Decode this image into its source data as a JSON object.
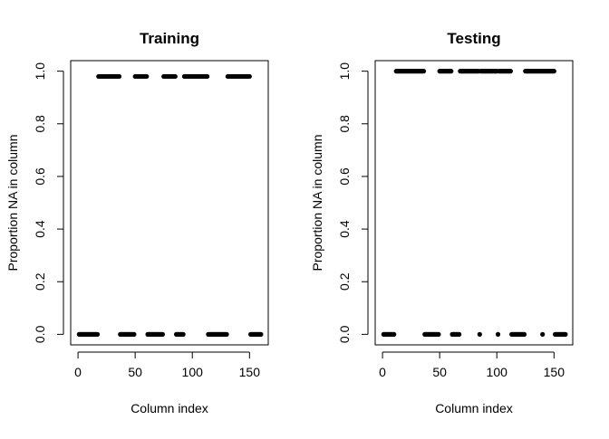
{
  "chart_data": [
    {
      "type": "scatter",
      "title": "Training",
      "xlabel": "Column index",
      "ylabel": "Proportion NA in column",
      "xlim": [
        -6.4,
        166.4
      ],
      "ylim": [
        -0.04,
        1.04
      ],
      "xticks": [
        0,
        50,
        100,
        150
      ],
      "yticks": [
        0.0,
        0.2,
        0.4,
        0.6,
        0.8,
        1.0
      ],
      "yticklabels": [
        "0.0",
        "0.2",
        "0.4",
        "0.6",
        "0.8",
        "1.0"
      ],
      "grid": false,
      "marker_color": "#000000",
      "series": [
        {
          "y": 0.98,
          "x_ranges": [
            [
              18,
              36
            ],
            [
              50,
              60
            ],
            [
              75,
              85
            ],
            [
              93,
              113
            ],
            [
              131,
              150
            ]
          ]
        },
        {
          "y": 0.0,
          "x_ranges": [
            [
              1,
              17
            ],
            [
              37,
              49
            ],
            [
              61,
              74
            ],
            [
              86,
              92
            ],
            [
              114,
              130
            ],
            [
              151,
              160
            ]
          ]
        }
      ]
    },
    {
      "type": "scatter",
      "title": "Testing",
      "xlabel": "Column index",
      "ylabel": "Proportion NA in column",
      "xlim": [
        -6.4,
        166.4
      ],
      "ylim": [
        -0.04,
        1.04
      ],
      "xticks": [
        0,
        50,
        100,
        150
      ],
      "yticks": [
        0.0,
        0.2,
        0.4,
        0.6,
        0.8,
        1.0
      ],
      "yticklabels": [
        "0.0",
        "0.2",
        "0.4",
        "0.6",
        "0.8",
        "1.0"
      ],
      "grid": false,
      "marker_color": "#000000",
      "series": [
        {
          "y": 1.0,
          "x_ranges": [
            [
              12,
              36
            ],
            [
              50,
              60
            ],
            [
              68,
              84
            ],
            [
              86,
              100
            ],
            [
              102,
              112
            ],
            [
              125,
              150
            ]
          ]
        },
        {
          "y": 0.0,
          "x_ranges": [
            [
              1,
              10
            ],
            [
              37,
              49
            ],
            [
              61,
              67
            ],
            [
              85,
              85
            ],
            [
              101,
              101
            ],
            [
              113,
              124
            ],
            [
              140,
              140
            ],
            [
              151,
              160
            ]
          ]
        }
      ]
    }
  ]
}
